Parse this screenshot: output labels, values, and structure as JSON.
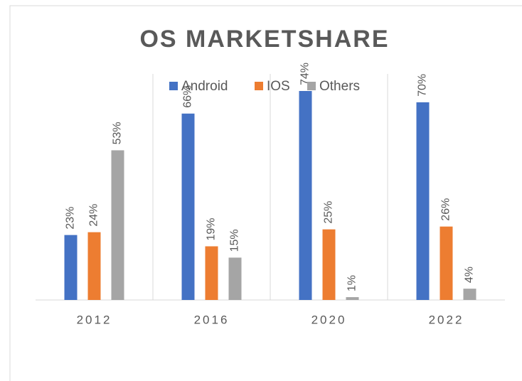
{
  "chart_data": {
    "type": "bar",
    "title": "OS MARKETSHARE",
    "categories": [
      "2012",
      "2016",
      "2020",
      "2022"
    ],
    "series": [
      {
        "name": "Android",
        "color": "#4472c4",
        "values": [
          23,
          66,
          74,
          70
        ],
        "value_labels": [
          "23%",
          "66%",
          "74%",
          "70%"
        ]
      },
      {
        "name": "IOS",
        "color": "#ed7d31",
        "values": [
          24,
          19,
          25,
          26
        ],
        "value_labels": [
          "24%",
          "19%",
          "25%",
          "26%"
        ]
      },
      {
        "name": "Others",
        "color": "#a5a5a5",
        "values": [
          53,
          15,
          1,
          4
        ],
        "value_labels": [
          "53%",
          "15%",
          "1%",
          "4%"
        ]
      }
    ]
  }
}
